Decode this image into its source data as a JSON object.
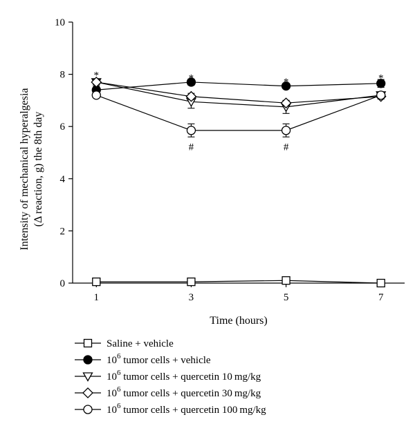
{
  "chart_data": {
    "type": "line",
    "xlabel": "Time (hours)",
    "ylabel_lines": [
      "Intensity of mechanical hyperalgesia",
      "(Δ reaction, g) the 8th day"
    ],
    "x": [
      1,
      3,
      5,
      7
    ],
    "xlim": [
      0.5,
      7.5
    ],
    "ylim": [
      0,
      10
    ],
    "xticks": [
      1,
      3,
      5,
      7
    ],
    "yticks": [
      0,
      2,
      4,
      6,
      8,
      10
    ],
    "grid": false,
    "legend_position": "bottom",
    "series": [
      {
        "name": "Saline + vehicle",
        "name_prefix": "",
        "name_sup": "",
        "name_suffix": "Saline + vehicle",
        "marker": "square-open",
        "values": [
          0.05,
          0.05,
          0.1,
          0.0
        ],
        "errors": [
          0.05,
          0.05,
          0.05,
          0.05
        ]
      },
      {
        "name": "10^6 tumor cells + vehicle",
        "name_prefix": "10",
        "name_sup": "6",
        "name_suffix": " tumor cells + vehicle",
        "marker": "circle-filled",
        "values": [
          7.4,
          7.7,
          7.55,
          7.65
        ],
        "errors": [
          0.15,
          0.12,
          0.1,
          0.15
        ]
      },
      {
        "name": "10^6 tumor cells + quercetin 10 mg/kg",
        "name_prefix": "10",
        "name_sup": "6",
        "name_suffix": " tumor cells + quercetin 10 mg/kg",
        "marker": "triangle-down-open",
        "values": [
          7.7,
          6.95,
          6.75,
          7.2
        ],
        "errors": [
          0.1,
          0.25,
          0.25,
          0.1
        ]
      },
      {
        "name": "10^6 tumor cells + quercetin 30 mg/kg",
        "name_prefix": "10",
        "name_sup": "6",
        "name_suffix": " tumor cells + quercetin 30 mg/kg",
        "marker": "diamond-open",
        "values": [
          7.7,
          7.15,
          6.9,
          7.15
        ],
        "errors": [
          0.1,
          0.12,
          0.1,
          0.1
        ]
      },
      {
        "name": "10^6 tumor cells + quercetin 100 mg/kg",
        "name_prefix": "10",
        "name_sup": "6",
        "name_suffix": " tumor cells + quercetin 100 mg/kg",
        "marker": "circle-open",
        "values": [
          7.2,
          5.85,
          5.85,
          7.2
        ],
        "errors": [
          0.1,
          0.25,
          0.25,
          0.1
        ]
      }
    ],
    "annotations": [
      {
        "x": 1,
        "y": 8.05,
        "text": "*"
      },
      {
        "x": 3,
        "y": 7.95,
        "text": "*"
      },
      {
        "x": 5,
        "y": 7.8,
        "text": "*"
      },
      {
        "x": 7,
        "y": 7.95,
        "text": "*"
      },
      {
        "x": 3,
        "y": 5.25,
        "text": "#"
      },
      {
        "x": 5,
        "y": 5.25,
        "text": "#"
      }
    ]
  }
}
